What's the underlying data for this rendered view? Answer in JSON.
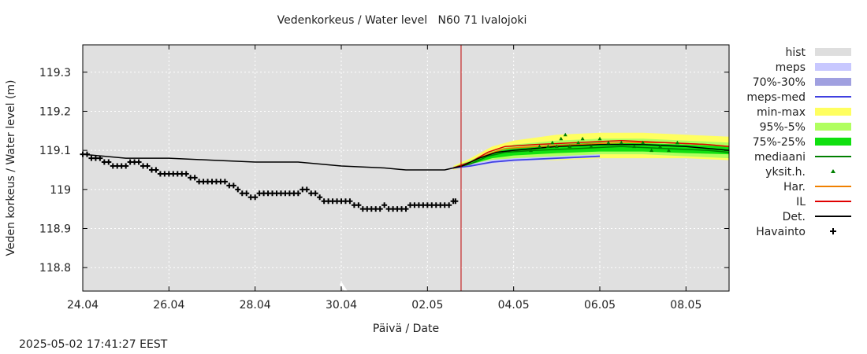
{
  "header": {
    "title": "Vedenkorkeus / Water level   N60 71 Ivalojoki"
  },
  "footer": {
    "timestamp": "2025-05-02 17:41:27 EEST"
  },
  "colors": {
    "plot_background": "#e0e0e0",
    "hist": "#dedede",
    "meps": "#c8c8ff",
    "meps_70_30": "#a0a0e0",
    "meps_med": "#4040e0",
    "min_max": "#ffff60",
    "p95_5": "#b0ff60",
    "p75_25": "#10e010",
    "mediaani": "#008000",
    "yksit_h": "#008000",
    "har": "#f08000",
    "il": "#e00000",
    "det": "#000000",
    "havainto": "#000000",
    "now_line": "#c00000"
  },
  "chart_data": {
    "type": "line",
    "title": "Vedenkorkeus / Water level   N60 71 Ivalojoki",
    "xlabel": "Päivä / Date",
    "ylabel": "Veden korkeus / Water level (m)",
    "x_unit": "days since 24.04",
    "xlim": [
      0,
      15.0
    ],
    "ylim": [
      118.74,
      119.37
    ],
    "now_x": 8.78,
    "grid": true,
    "x_ticks": [
      {
        "x": 0,
        "label": "24.04"
      },
      {
        "x": 2,
        "label": "26.04"
      },
      {
        "x": 4,
        "label": "28.04"
      },
      {
        "x": 6,
        "label": "30.04"
      },
      {
        "x": 8,
        "label": "02.05"
      },
      {
        "x": 10,
        "label": "04.05"
      },
      {
        "x": 12,
        "label": "06.05"
      },
      {
        "x": 14,
        "label": "08.05"
      }
    ],
    "y_ticks": [
      {
        "y": 118.8,
        "label": "118.8"
      },
      {
        "y": 118.9,
        "label": "118.9"
      },
      {
        "y": 119.0,
        "label": "119"
      },
      {
        "y": 119.1,
        "label": "119.1"
      },
      {
        "y": 119.2,
        "label": "119.2"
      },
      {
        "y": 119.3,
        "label": "119.3"
      }
    ],
    "legend_position": "right",
    "legend": [
      {
        "label": "hist",
        "style": "band",
        "color": "#dedede"
      },
      {
        "label": "meps",
        "style": "band",
        "color": "#c8c8ff"
      },
      {
        "label": "70%-30%",
        "style": "band",
        "color": "#a0a0e0"
      },
      {
        "label": "meps-med",
        "style": "line",
        "color": "#4040e0"
      },
      {
        "label": "min-max",
        "style": "band",
        "color": "#ffff60"
      },
      {
        "label": "95%-5%",
        "style": "band",
        "color": "#b0ff60"
      },
      {
        "label": "75%-25%",
        "style": "band",
        "color": "#10e010"
      },
      {
        "label": "mediaani",
        "style": "line",
        "color": "#008000"
      },
      {
        "label": "yksit.h.",
        "style": "triangle",
        "color": "#008000"
      },
      {
        "label": "Har.",
        "style": "line",
        "color": "#f08000"
      },
      {
        "label": "IL",
        "style": "line",
        "color": "#e00000"
      },
      {
        "label": "Det.",
        "style": "line",
        "color": "#000000"
      },
      {
        "label": "Havainto",
        "style": "plus",
        "color": "#000000"
      }
    ],
    "series": {
      "havainto": [
        [
          0.0,
          119.09
        ],
        [
          0.1,
          119.09
        ],
        [
          0.2,
          119.08
        ],
        [
          0.3,
          119.08
        ],
        [
          0.4,
          119.08
        ],
        [
          0.5,
          119.07
        ],
        [
          0.6,
          119.07
        ],
        [
          0.7,
          119.06
        ],
        [
          0.8,
          119.06
        ],
        [
          0.9,
          119.06
        ],
        [
          1.0,
          119.06
        ],
        [
          1.1,
          119.07
        ],
        [
          1.2,
          119.07
        ],
        [
          1.3,
          119.07
        ],
        [
          1.4,
          119.06
        ],
        [
          1.5,
          119.06
        ],
        [
          1.6,
          119.05
        ],
        [
          1.7,
          119.05
        ],
        [
          1.8,
          119.04
        ],
        [
          1.9,
          119.04
        ],
        [
          2.0,
          119.04
        ],
        [
          2.1,
          119.04
        ],
        [
          2.2,
          119.04
        ],
        [
          2.3,
          119.04
        ],
        [
          2.4,
          119.04
        ],
        [
          2.5,
          119.03
        ],
        [
          2.6,
          119.03
        ],
        [
          2.7,
          119.02
        ],
        [
          2.8,
          119.02
        ],
        [
          2.9,
          119.02
        ],
        [
          3.0,
          119.02
        ],
        [
          3.1,
          119.02
        ],
        [
          3.2,
          119.02
        ],
        [
          3.3,
          119.02
        ],
        [
          3.4,
          119.01
        ],
        [
          3.5,
          119.01
        ],
        [
          3.6,
          119.0
        ],
        [
          3.7,
          118.99
        ],
        [
          3.8,
          118.99
        ],
        [
          3.9,
          118.98
        ],
        [
          4.0,
          118.98
        ],
        [
          4.1,
          118.99
        ],
        [
          4.2,
          118.99
        ],
        [
          4.3,
          118.99
        ],
        [
          4.4,
          118.99
        ],
        [
          4.5,
          118.99
        ],
        [
          4.6,
          118.99
        ],
        [
          4.7,
          118.99
        ],
        [
          4.8,
          118.99
        ],
        [
          4.9,
          118.99
        ],
        [
          5.0,
          118.99
        ],
        [
          5.1,
          119.0
        ],
        [
          5.2,
          119.0
        ],
        [
          5.3,
          118.99
        ],
        [
          5.4,
          118.99
        ],
        [
          5.5,
          118.98
        ],
        [
          5.6,
          118.97
        ],
        [
          5.7,
          118.97
        ],
        [
          5.8,
          118.97
        ],
        [
          5.9,
          118.97
        ],
        [
          6.0,
          118.97
        ],
        [
          6.1,
          118.97
        ],
        [
          6.2,
          118.97
        ],
        [
          6.3,
          118.96
        ],
        [
          6.4,
          118.96
        ],
        [
          6.5,
          118.95
        ],
        [
          6.6,
          118.95
        ],
        [
          6.7,
          118.95
        ],
        [
          6.8,
          118.95
        ],
        [
          6.9,
          118.95
        ],
        [
          7.0,
          118.96
        ],
        [
          7.1,
          118.95
        ],
        [
          7.2,
          118.95
        ],
        [
          7.3,
          118.95
        ],
        [
          7.4,
          118.95
        ],
        [
          7.5,
          118.95
        ],
        [
          7.6,
          118.96
        ],
        [
          7.7,
          118.96
        ],
        [
          7.8,
          118.96
        ],
        [
          7.9,
          118.96
        ],
        [
          8.0,
          118.96
        ],
        [
          8.1,
          118.96
        ],
        [
          8.2,
          118.96
        ],
        [
          8.3,
          118.96
        ],
        [
          8.4,
          118.96
        ],
        [
          8.5,
          118.96
        ],
        [
          8.6,
          118.97
        ],
        [
          8.65,
          118.97
        ]
      ],
      "det": [
        [
          0.0,
          119.09
        ],
        [
          1.0,
          119.08
        ],
        [
          2.0,
          119.08
        ],
        [
          3.0,
          119.075
        ],
        [
          4.0,
          119.07
        ],
        [
          5.0,
          119.07
        ],
        [
          6.0,
          119.06
        ],
        [
          7.0,
          119.055
        ],
        [
          7.5,
          119.05
        ],
        [
          8.0,
          119.05
        ],
        [
          8.4,
          119.05
        ],
        [
          8.8,
          119.06
        ],
        [
          9.2,
          119.08
        ],
        [
          9.6,
          119.095
        ],
        [
          10.0,
          119.1
        ],
        [
          11.0,
          119.11
        ],
        [
          12.0,
          119.115
        ],
        [
          13.0,
          119.115
        ],
        [
          14.0,
          119.11
        ],
        [
          15.0,
          119.1
        ]
      ],
      "il": [
        [
          8.6,
          119.055
        ],
        [
          9.0,
          119.07
        ],
        [
          9.4,
          119.095
        ],
        [
          9.8,
          119.11
        ],
        [
          10.5,
          119.115
        ],
        [
          11.5,
          119.12
        ],
        [
          12.5,
          119.125
        ],
        [
          13.5,
          119.12
        ],
        [
          14.5,
          119.115
        ],
        [
          15.0,
          119.11
        ]
      ],
      "har": [
        [
          8.6,
          119.055
        ],
        [
          9.0,
          119.07
        ],
        [
          9.4,
          119.09
        ],
        [
          9.8,
          119.105
        ],
        [
          10.5,
          119.11
        ],
        [
          11.5,
          119.115
        ],
        [
          12.5,
          119.12
        ],
        [
          13.5,
          119.12
        ],
        [
          14.5,
          119.115
        ],
        [
          15.0,
          119.11
        ]
      ],
      "mediaani": [
        [
          8.6,
          119.055
        ],
        [
          9.0,
          119.065
        ],
        [
          9.4,
          119.085
        ],
        [
          9.8,
          119.095
        ],
        [
          10.5,
          119.1
        ],
        [
          11.5,
          119.105
        ],
        [
          12.5,
          119.11
        ],
        [
          13.5,
          119.105
        ],
        [
          14.5,
          119.1
        ],
        [
          15.0,
          119.095
        ]
      ],
      "meps_med": [
        [
          8.6,
          119.055
        ],
        [
          9.0,
          119.06
        ],
        [
          9.5,
          119.07
        ],
        [
          10.0,
          119.075
        ],
        [
          11.0,
          119.08
        ],
        [
          12.0,
          119.085
        ]
      ],
      "min_max": [
        [
          8.6,
          119.05,
          119.06
        ],
        [
          9.0,
          119.06,
          119.08
        ],
        [
          9.5,
          119.07,
          119.11
        ],
        [
          10.0,
          119.075,
          119.125
        ],
        [
          11.0,
          119.075,
          119.14
        ],
        [
          12.0,
          119.08,
          119.145
        ],
        [
          13.0,
          119.08,
          119.145
        ],
        [
          14.0,
          119.08,
          119.14
        ],
        [
          15.0,
          119.075,
          119.135
        ]
      ],
      "p95_5": [
        [
          8.6,
          119.052,
          119.058
        ],
        [
          9.0,
          119.062,
          119.075
        ],
        [
          9.5,
          119.075,
          119.1
        ],
        [
          10.0,
          119.08,
          119.115
        ],
        [
          11.0,
          119.085,
          119.125
        ],
        [
          12.0,
          119.09,
          119.13
        ],
        [
          13.0,
          119.09,
          119.13
        ],
        [
          14.0,
          119.085,
          119.125
        ],
        [
          15.0,
          119.08,
          119.12
        ]
      ],
      "p75_25": [
        [
          8.6,
          119.054,
          119.057
        ],
        [
          9.0,
          119.064,
          119.072
        ],
        [
          9.5,
          119.08,
          119.095
        ],
        [
          10.0,
          119.087,
          119.107
        ],
        [
          11.0,
          119.093,
          119.115
        ],
        [
          12.0,
          119.097,
          119.12
        ],
        [
          13.0,
          119.097,
          119.118
        ],
        [
          14.0,
          119.093,
          119.115
        ],
        [
          15.0,
          119.09,
          119.11
        ]
      ],
      "meps_band": [
        [
          8.6,
          119.052,
          119.058
        ],
        [
          9.0,
          119.058,
          119.065
        ],
        [
          9.5,
          119.067,
          119.076
        ],
        [
          10.0,
          119.072,
          119.08
        ],
        [
          11.0,
          119.077,
          119.085
        ],
        [
          12.0,
          119.082,
          119.09
        ]
      ],
      "yksit_h": [
        [
          10.4,
          119.1
        ],
        [
          10.6,
          119.11
        ],
        [
          10.8,
          119.11
        ],
        [
          10.9,
          119.12
        ],
        [
          11.0,
          119.11
        ],
        [
          11.1,
          119.13
        ],
        [
          11.2,
          119.14
        ],
        [
          11.3,
          119.11
        ],
        [
          11.5,
          119.12
        ],
        [
          11.6,
          119.13
        ],
        [
          11.8,
          119.11
        ],
        [
          12.0,
          119.13
        ],
        [
          12.2,
          119.12
        ],
        [
          12.5,
          119.12
        ],
        [
          12.8,
          119.11
        ],
        [
          13.0,
          119.12
        ],
        [
          13.2,
          119.1
        ],
        [
          13.4,
          119.11
        ],
        [
          13.6,
          119.1
        ],
        [
          13.8,
          119.12
        ]
      ]
    }
  }
}
